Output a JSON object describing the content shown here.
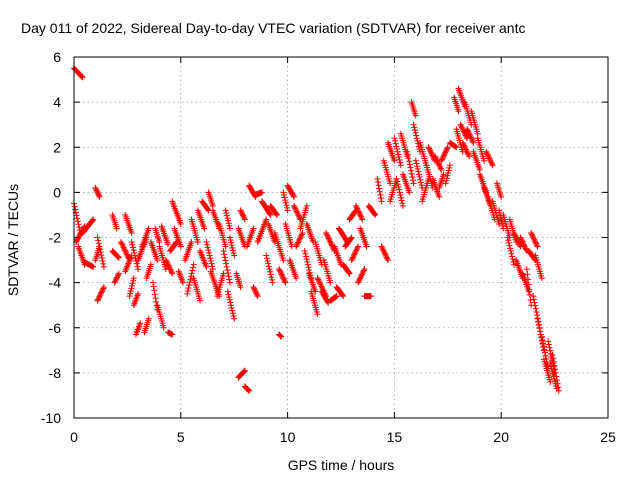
{
  "chart_data": {
    "type": "scatter",
    "title": "Day 011 of 2022, Sidereal Day-to-day VTEC variation (SDTVAR) for receiver antc",
    "xlabel": "GPS time / hours",
    "ylabel": "SDTVAR / TECUs",
    "xlim": [
      0,
      25
    ],
    "ylim": [
      -10,
      6
    ],
    "xticks": [
      "0",
      "5",
      "10",
      "15",
      "20",
      "25"
    ],
    "yticks": [
      "6",
      "4",
      "2",
      "0",
      "-2",
      "-4",
      "-6",
      "-8",
      "-10"
    ],
    "grid": true,
    "marker": "plus",
    "color": "#ff0000",
    "segments": [
      {
        "x0": 0.0,
        "x1": 0.4,
        "y0": 5.5,
        "y1": 5.1
      },
      {
        "x0": 0.0,
        "x1": 0.3,
        "y0": -0.5,
        "y1": -1.8
      },
      {
        "x0": 0.1,
        "x1": 0.5,
        "y0": -2.2,
        "y1": -1.5
      },
      {
        "x0": 0.2,
        "x1": 0.5,
        "y0": -2.4,
        "y1": -3.2
      },
      {
        "x0": 0.4,
        "x1": 0.9,
        "y0": -1.8,
        "y1": -1.2
      },
      {
        "x0": 0.5,
        "x1": 0.9,
        "y0": -3.1,
        "y1": -3.3
      },
      {
        "x0": 1.0,
        "x1": 1.2,
        "y0": -3.0,
        "y1": -2.4
      },
      {
        "x0": 1.0,
        "x1": 1.2,
        "y0": 0.2,
        "y1": -0.2
      },
      {
        "x0": 1.1,
        "x1": 1.4,
        "y0": -4.8,
        "y1": -4.2
      },
      {
        "x0": 1.1,
        "x1": 1.4,
        "y0": -2.0,
        "y1": -3.3
      },
      {
        "x0": 1.8,
        "x1": 2.0,
        "y0": -1.0,
        "y1": -1.6
      },
      {
        "x0": 1.8,
        "x1": 2.1,
        "y0": -2.6,
        "y1": -2.9
      },
      {
        "x0": 1.9,
        "x1": 2.1,
        "y0": -4.0,
        "y1": -3.6
      },
      {
        "x0": 2.2,
        "x1": 2.6,
        "y0": -2.2,
        "y1": -3.0
      },
      {
        "x0": 2.4,
        "x1": 2.7,
        "y0": -1.0,
        "y1": -1.8
      },
      {
        "x0": 2.4,
        "x1": 2.7,
        "y0": -3.5,
        "y1": -2.8
      },
      {
        "x0": 2.6,
        "x1": 2.8,
        "y0": -4.6,
        "y1": -3.8
      },
      {
        "x0": 2.7,
        "x1": 3.0,
        "y0": -2.2,
        "y1": -3.4
      },
      {
        "x0": 2.8,
        "x1": 3.0,
        "y0": -5.0,
        "y1": -4.5
      },
      {
        "x0": 2.9,
        "x1": 3.1,
        "y0": -6.3,
        "y1": -5.8
      },
      {
        "x0": 3.0,
        "x1": 3.4,
        "y0": -3.0,
        "y1": -2.0
      },
      {
        "x0": 3.2,
        "x1": 3.5,
        "y0": -2.4,
        "y1": -1.6
      },
      {
        "x0": 3.3,
        "x1": 3.5,
        "y0": -6.2,
        "y1": -5.6
      },
      {
        "x0": 3.4,
        "x1": 3.6,
        "y0": -3.8,
        "y1": -3.2
      },
      {
        "x0": 3.6,
        "x1": 3.9,
        "y0": -2.2,
        "y1": -3.0
      },
      {
        "x0": 3.7,
        "x1": 3.9,
        "y0": -4.0,
        "y1": -5.2
      },
      {
        "x0": 3.8,
        "x1": 4.0,
        "y0": -1.6,
        "y1": -2.2
      },
      {
        "x0": 3.9,
        "x1": 4.2,
        "y0": -5.0,
        "y1": -6.0
      },
      {
        "x0": 4.0,
        "x1": 4.3,
        "y0": -2.4,
        "y1": -3.4
      },
      {
        "x0": 4.1,
        "x1": 4.4,
        "y0": -1.5,
        "y1": -2.3
      },
      {
        "x0": 4.3,
        "x1": 4.6,
        "y0": -3.0,
        "y1": -3.6
      },
      {
        "x0": 4.4,
        "x1": 4.6,
        "y0": -6.2,
        "y1": -6.3
      },
      {
        "x0": 4.5,
        "x1": 4.8,
        "y0": -2.6,
        "y1": -2.2
      },
      {
        "x0": 4.6,
        "x1": 5.0,
        "y0": -0.4,
        "y1": -1.4
      },
      {
        "x0": 4.7,
        "x1": 5.0,
        "y0": -1.6,
        "y1": -2.4
      },
      {
        "x0": 4.9,
        "x1": 5.1,
        "y0": -3.5,
        "y1": -4.0
      },
      {
        "x0": 5.2,
        "x1": 5.5,
        "y0": -3.0,
        "y1": -2.2
      },
      {
        "x0": 5.3,
        "x1": 5.6,
        "y0": -4.5,
        "y1": -3.2
      },
      {
        "x0": 5.5,
        "x1": 5.8,
        "y0": -1.2,
        "y1": -2.2
      },
      {
        "x0": 5.6,
        "x1": 5.9,
        "y0": -3.8,
        "y1": -4.8
      },
      {
        "x0": 5.8,
        "x1": 6.1,
        "y0": -0.8,
        "y1": -1.6
      },
      {
        "x0": 5.9,
        "x1": 6.2,
        "y0": -2.6,
        "y1": -3.3
      },
      {
        "x0": 6.0,
        "x1": 6.3,
        "y0": -0.4,
        "y1": -0.8
      },
      {
        "x0": 6.2,
        "x1": 6.5,
        "y0": -2.2,
        "y1": -3.4
      },
      {
        "x0": 6.3,
        "x1": 6.5,
        "y0": 0.0,
        "y1": -0.6
      },
      {
        "x0": 6.4,
        "x1": 6.8,
        "y0": -3.5,
        "y1": -4.6
      },
      {
        "x0": 6.5,
        "x1": 6.8,
        "y0": -0.8,
        "y1": -1.6
      },
      {
        "x0": 6.7,
        "x1": 7.0,
        "y0": -4.6,
        "y1": -3.6
      },
      {
        "x0": 6.8,
        "x1": 7.1,
        "y0": -1.4,
        "y1": -2.4
      },
      {
        "x0": 7.0,
        "x1": 7.3,
        "y0": -2.6,
        "y1": -4.0
      },
      {
        "x0": 7.1,
        "x1": 7.3,
        "y0": -0.8,
        "y1": -1.6
      },
      {
        "x0": 7.2,
        "x1": 7.5,
        "y0": -4.4,
        "y1": -5.6
      },
      {
        "x0": 7.3,
        "x1": 7.5,
        "y0": -2.0,
        "y1": -2.8
      },
      {
        "x0": 7.6,
        "x1": 7.8,
        "y0": -3.6,
        "y1": -4.2
      },
      {
        "x0": 7.7,
        "x1": 8.0,
        "y0": -1.6,
        "y1": -2.4
      },
      {
        "x0": 7.7,
        "x1": 8.0,
        "y0": -8.2,
        "y1": -7.9
      },
      {
        "x0": 7.8,
        "x1": 8.0,
        "y0": -0.8,
        "y1": -1.2
      },
      {
        "x0": 8.0,
        "x1": 8.2,
        "y0": -8.6,
        "y1": -8.8
      },
      {
        "x0": 8.1,
        "x1": 8.4,
        "y0": -2.4,
        "y1": -1.6
      },
      {
        "x0": 8.2,
        "x1": 8.5,
        "y0": 0.3,
        "y1": -0.2
      },
      {
        "x0": 8.4,
        "x1": 8.6,
        "y0": -4.2,
        "y1": -4.6
      },
      {
        "x0": 8.5,
        "x1": 8.8,
        "y0": -0.1,
        "y1": 0.0
      },
      {
        "x0": 8.6,
        "x1": 9.0,
        "y0": -2.2,
        "y1": -1.2
      },
      {
        "x0": 8.8,
        "x1": 9.2,
        "y0": -0.4,
        "y1": -1.0
      },
      {
        "x0": 9.0,
        "x1": 9.3,
        "y0": -2.8,
        "y1": -4.0
      },
      {
        "x0": 9.1,
        "x1": 9.4,
        "y0": -1.4,
        "y1": -2.2
      },
      {
        "x0": 9.2,
        "x1": 9.5,
        "y0": -0.6,
        "y1": -1.0
      },
      {
        "x0": 9.4,
        "x1": 9.8,
        "y0": -1.8,
        "y1": -3.0
      },
      {
        "x0": 9.6,
        "x1": 9.7,
        "y0": -6.3,
        "y1": -6.4
      },
      {
        "x0": 9.6,
        "x1": 9.9,
        "y0": -3.4,
        "y1": -4.0
      },
      {
        "x0": 9.8,
        "x1": 10.0,
        "y0": 0.0,
        "y1": -0.8
      },
      {
        "x0": 9.9,
        "x1": 10.2,
        "y0": -1.4,
        "y1": -2.4
      },
      {
        "x0": 10.0,
        "x1": 10.3,
        "y0": 0.3,
        "y1": -0.2
      },
      {
        "x0": 10.1,
        "x1": 10.4,
        "y0": -3.0,
        "y1": -3.8
      },
      {
        "x0": 10.3,
        "x1": 10.6,
        "y0": -0.6,
        "y1": -1.2
      },
      {
        "x0": 10.4,
        "x1": 10.7,
        "y0": -2.4,
        "y1": -1.8
      },
      {
        "x0": 10.6,
        "x1": 10.9,
        "y0": -1.6,
        "y1": -0.6
      },
      {
        "x0": 10.8,
        "x1": 11.1,
        "y0": -2.6,
        "y1": -3.8
      },
      {
        "x0": 10.9,
        "x1": 11.2,
        "y0": -1.4,
        "y1": -2.2
      },
      {
        "x0": 11.0,
        "x1": 11.3,
        "y0": -3.6,
        "y1": -4.4
      },
      {
        "x0": 11.1,
        "x1": 11.4,
        "y0": -4.4,
        "y1": -5.4
      },
      {
        "x0": 11.3,
        "x1": 11.6,
        "y0": -2.2,
        "y1": -3.2
      },
      {
        "x0": 11.4,
        "x1": 11.8,
        "y0": -3.8,
        "y1": -4.6
      },
      {
        "x0": 11.6,
        "x1": 11.9,
        "y0": -4.4,
        "y1": -4.9
      },
      {
        "x0": 11.7,
        "x1": 12.0,
        "y0": -3.0,
        "y1": -4.0
      },
      {
        "x0": 11.8,
        "x1": 12.2,
        "y0": -1.8,
        "y1": -2.6
      },
      {
        "x0": 12.0,
        "x1": 12.3,
        "y0": -4.8,
        "y1": -4.6
      },
      {
        "x0": 12.2,
        "x1": 12.5,
        "y0": -2.4,
        "y1": -3.2
      },
      {
        "x0": 12.3,
        "x1": 12.6,
        "y0": -4.2,
        "y1": -4.6
      },
      {
        "x0": 12.4,
        "x1": 12.8,
        "y0": -1.6,
        "y1": -2.2
      },
      {
        "x0": 12.6,
        "x1": 12.9,
        "y0": -3.2,
        "y1": -3.6
      },
      {
        "x0": 12.7,
        "x1": 13.0,
        "y0": -2.4,
        "y1": -2.0
      },
      {
        "x0": 12.9,
        "x1": 13.2,
        "y0": -1.2,
        "y1": -0.8
      },
      {
        "x0": 13.0,
        "x1": 13.3,
        "y0": -3.0,
        "y1": -2.4
      },
      {
        "x0": 13.2,
        "x1": 13.5,
        "y0": -0.6,
        "y1": -1.2
      },
      {
        "x0": 13.3,
        "x1": 13.6,
        "y0": -4.0,
        "y1": -3.4
      },
      {
        "x0": 13.4,
        "x1": 13.7,
        "y0": -1.6,
        "y1": -2.4
      },
      {
        "x0": 13.6,
        "x1": 13.9,
        "y0": -4.6,
        "y1": -4.6
      },
      {
        "x0": 13.8,
        "x1": 14.1,
        "y0": -0.6,
        "y1": -1.0
      },
      {
        "x0": 14.2,
        "x1": 14.4,
        "y0": 0.6,
        "y1": -0.4
      },
      {
        "x0": 14.4,
        "x1": 14.7,
        "y0": -2.4,
        "y1": -3.0
      },
      {
        "x0": 14.5,
        "x1": 14.8,
        "y0": 1.4,
        "y1": 0.4
      },
      {
        "x0": 14.7,
        "x1": 15.0,
        "y0": 2.2,
        "y1": 1.4
      },
      {
        "x0": 14.8,
        "x1": 15.1,
        "y0": -0.4,
        "y1": 0.6
      },
      {
        "x0": 15.0,
        "x1": 15.3,
        "y0": 2.4,
        "y1": 1.2
      },
      {
        "x0": 15.1,
        "x1": 15.4,
        "y0": 0.6,
        "y1": -0.6
      },
      {
        "x0": 15.3,
        "x1": 15.6,
        "y0": 2.6,
        "y1": 1.6
      },
      {
        "x0": 15.4,
        "x1": 15.7,
        "y0": 0.8,
        "y1": 0.0
      },
      {
        "x0": 15.6,
        "x1": 15.9,
        "y0": 1.8,
        "y1": 0.4
      },
      {
        "x0": 15.8,
        "x1": 16.0,
        "y0": 4.0,
        "y1": 3.4
      },
      {
        "x0": 15.9,
        "x1": 16.2,
        "y0": 3.0,
        "y1": 1.8
      },
      {
        "x0": 16.0,
        "x1": 16.3,
        "y0": 1.4,
        "y1": 0.2
      },
      {
        "x0": 16.2,
        "x1": 16.5,
        "y0": 2.2,
        "y1": 1.2
      },
      {
        "x0": 16.3,
        "x1": 16.6,
        "y0": -0.4,
        "y1": 0.6
      },
      {
        "x0": 16.5,
        "x1": 16.8,
        "y0": 1.2,
        "y1": 0.2
      },
      {
        "x0": 16.6,
        "x1": 16.9,
        "y0": 2.0,
        "y1": 1.4
      },
      {
        "x0": 16.8,
        "x1": 17.1,
        "y0": 0.6,
        "y1": -0.2
      },
      {
        "x0": 16.9,
        "x1": 17.2,
        "y0": 1.6,
        "y1": 1.0
      },
      {
        "x0": 17.1,
        "x1": 17.3,
        "y0": 0.2,
        "y1": 0.8
      },
      {
        "x0": 17.2,
        "x1": 17.5,
        "y0": 1.4,
        "y1": 2.0
      },
      {
        "x0": 17.4,
        "x1": 17.6,
        "y0": 0.4,
        "y1": 1.2
      },
      {
        "x0": 17.6,
        "x1": 17.9,
        "y0": 2.2,
        "y1": 2.0
      },
      {
        "x0": 17.8,
        "x1": 18.0,
        "y0": 4.2,
        "y1": 3.6
      },
      {
        "x0": 17.9,
        "x1": 18.2,
        "y0": 2.8,
        "y1": 1.8
      },
      {
        "x0": 18.0,
        "x1": 18.3,
        "y0": 4.6,
        "y1": 3.8
      },
      {
        "x0": 18.1,
        "x1": 18.4,
        "y0": 3.0,
        "y1": 2.4
      },
      {
        "x0": 18.2,
        "x1": 18.5,
        "y0": 2.2,
        "y1": 1.6
      },
      {
        "x0": 18.3,
        "x1": 18.6,
        "y0": 4.0,
        "y1": 3.0
      },
      {
        "x0": 18.4,
        "x1": 18.7,
        "y0": 2.8,
        "y1": 2.2
      },
      {
        "x0": 18.6,
        "x1": 18.9,
        "y0": 3.6,
        "y1": 2.6
      },
      {
        "x0": 18.7,
        "x1": 19.0,
        "y0": 1.8,
        "y1": 1.0
      },
      {
        "x0": 18.9,
        "x1": 19.2,
        "y0": 2.4,
        "y1": 1.4
      },
      {
        "x0": 19.0,
        "x1": 19.3,
        "y0": 0.8,
        "y1": 0.0
      },
      {
        "x0": 19.2,
        "x1": 19.5,
        "y0": 0.2,
        "y1": -0.6
      },
      {
        "x0": 19.3,
        "x1": 19.6,
        "y0": 1.8,
        "y1": 1.2
      },
      {
        "x0": 19.4,
        "x1": 19.7,
        "y0": -0.2,
        "y1": -1.2
      },
      {
        "x0": 19.6,
        "x1": 19.9,
        "y0": -0.4,
        "y1": -1.4
      },
      {
        "x0": 19.8,
        "x1": 20.0,
        "y0": 0.4,
        "y1": -0.2
      },
      {
        "x0": 19.9,
        "x1": 20.1,
        "y0": -0.8,
        "y1": -1.6
      },
      {
        "x0": 20.1,
        "x1": 20.4,
        "y0": -1.0,
        "y1": -2.0
      },
      {
        "x0": 20.3,
        "x1": 20.6,
        "y0": -2.0,
        "y1": -3.2
      },
      {
        "x0": 20.4,
        "x1": 20.7,
        "y0": -1.2,
        "y1": -2.2
      },
      {
        "x0": 20.6,
        "x1": 20.9,
        "y0": -1.8,
        "y1": -2.4
      },
      {
        "x0": 20.7,
        "x1": 21.0,
        "y0": -3.0,
        "y1": -3.8
      },
      {
        "x0": 20.9,
        "x1": 21.2,
        "y0": -2.0,
        "y1": -2.6
      },
      {
        "x0": 21.0,
        "x1": 21.3,
        "y0": -3.6,
        "y1": -4.4
      },
      {
        "x0": 21.2,
        "x1": 21.4,
        "y0": -3.4,
        "y1": -5.0
      },
      {
        "x0": 21.3,
        "x1": 21.6,
        "y0": -2.6,
        "y1": -3.0
      },
      {
        "x0": 21.4,
        "x1": 21.7,
        "y0": -1.8,
        "y1": -2.4
      },
      {
        "x0": 21.5,
        "x1": 21.8,
        "y0": -4.6,
        "y1": -6.0
      },
      {
        "x0": 21.6,
        "x1": 21.9,
        "y0": -2.8,
        "y1": -3.8
      },
      {
        "x0": 21.7,
        "x1": 22.0,
        "y0": -5.6,
        "y1": -7.0
      },
      {
        "x0": 21.9,
        "x1": 22.2,
        "y0": -6.4,
        "y1": -7.8
      },
      {
        "x0": 22.0,
        "x1": 22.3,
        "y0": -7.4,
        "y1": -8.4
      },
      {
        "x0": 22.2,
        "x1": 22.5,
        "y0": -6.6,
        "y1": -8.0
      },
      {
        "x0": 22.3,
        "x1": 22.6,
        "y0": -7.6,
        "y1": -8.7
      },
      {
        "x0": 22.4,
        "x1": 22.7,
        "y0": -7.2,
        "y1": -8.8
      }
    ]
  }
}
